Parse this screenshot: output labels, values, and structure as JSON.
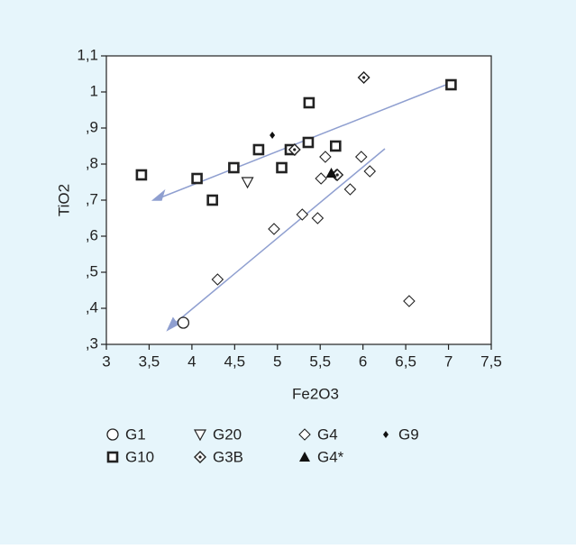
{
  "chart_data": {
    "type": "scatter",
    "x_label": "Fe2O3",
    "y_label": "TiO2",
    "xlim": [
      3,
      7.5
    ],
    "ylim": [
      0.3,
      1.1
    ],
    "xticks": [
      3,
      {
        "value": 3.5,
        "label": "3,5"
      },
      4,
      {
        "value": 4.5,
        "label": "4,5"
      },
      5,
      {
        "value": 5.5,
        "label": "5,5"
      },
      6,
      {
        "value": 6.5,
        "label": "6,5"
      },
      7,
      {
        "value": 7.5,
        "label": "7,5"
      }
    ],
    "yticks": [
      {
        "value": 0.3,
        "label": ",3"
      },
      {
        "value": 0.4,
        "label": ",4"
      },
      {
        "value": 0.5,
        "label": ",5"
      },
      {
        "value": 0.6,
        "label": ",6"
      },
      {
        "value": 0.7,
        "label": ",7"
      },
      {
        "value": 0.8,
        "label": ",8"
      },
      {
        "value": 0.9,
        "label": ",9"
      },
      1,
      {
        "value": 1.1,
        "label": "1,1"
      }
    ],
    "series": [
      {
        "name": "G1",
        "marker": "circle",
        "x": [
          3.9
        ],
        "values": [
          0.36
        ]
      },
      {
        "name": "G20",
        "marker": "triangle-down",
        "x": [
          4.65
        ],
        "values": [
          0.75
        ]
      },
      {
        "name": "G4",
        "marker": "diamond",
        "x": [
          4.3,
          4.96,
          5.29,
          5.47,
          5.51,
          5.56,
          5.69,
          5.85,
          5.98,
          6.08,
          6.54
        ],
        "values": [
          0.48,
          0.62,
          0.66,
          0.65,
          0.76,
          0.82,
          0.77,
          0.73,
          0.82,
          0.78,
          0.42
        ]
      },
      {
        "name": "G9",
        "marker": "diamond-filled",
        "x": [
          4.94
        ],
        "values": [
          0.88
        ]
      },
      {
        "name": "G10",
        "marker": "square",
        "x": [
          3.41,
          4.06,
          4.24,
          4.49,
          4.78,
          5.05,
          5.15,
          5.36,
          5.37,
          5.68,
          7.03
        ],
        "values": [
          0.77,
          0.76,
          0.7,
          0.79,
          0.84,
          0.79,
          0.84,
          0.86,
          0.97,
          0.85,
          1.02
        ]
      },
      {
        "name": "G3B",
        "marker": "diamond-cross",
        "x": [
          6.01,
          5.2,
          5.7
        ],
        "values": [
          1.04,
          0.84,
          0.77
        ]
      },
      {
        "name": "G4*",
        "marker": "triangle-up",
        "x": [
          5.63
        ],
        "values": [
          0.775
        ]
      }
    ]
  }
}
